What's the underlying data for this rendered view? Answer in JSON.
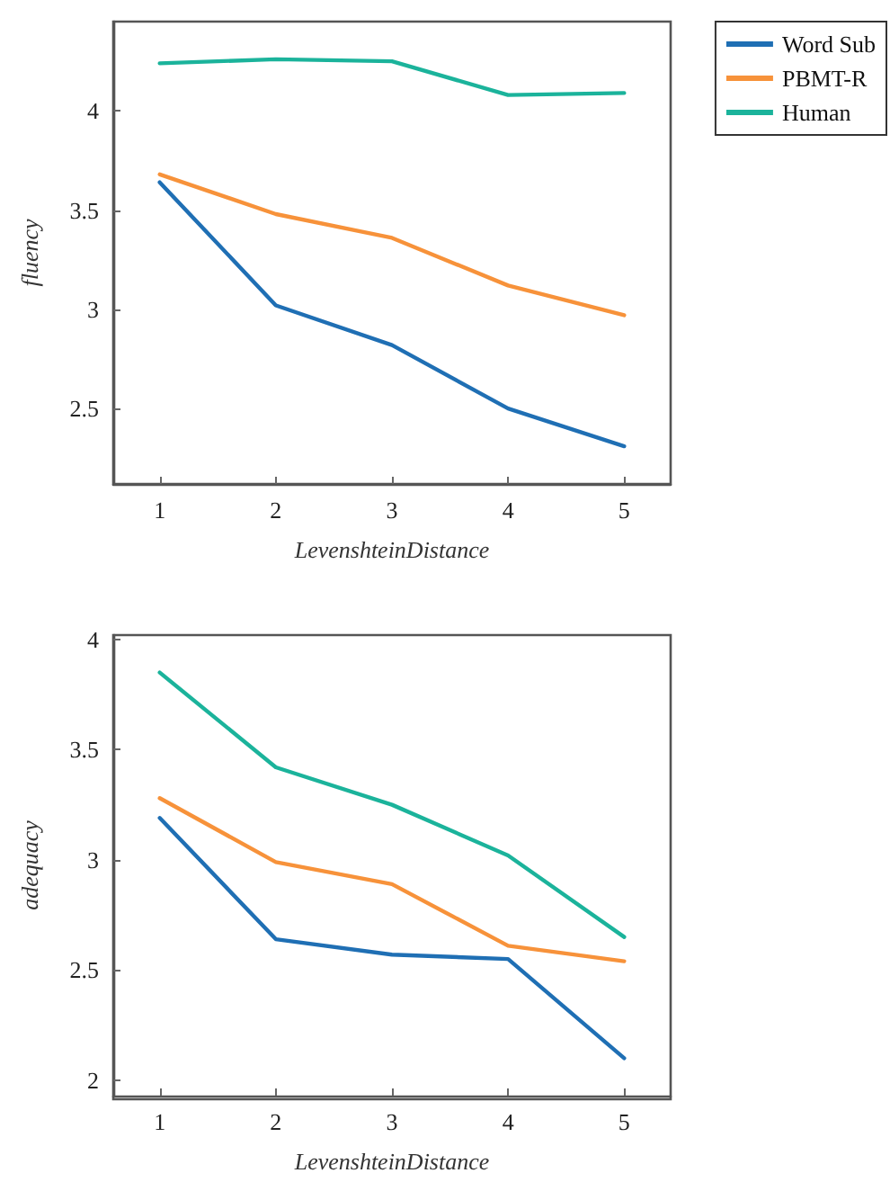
{
  "chart_data": [
    {
      "type": "line",
      "x": [
        1,
        2,
        3,
        4,
        5
      ],
      "xlabel": "LevenshteinDistance",
      "ylabel": "fluency",
      "xlim": [
        0.6,
        5.4
      ],
      "xticks": [
        1,
        2,
        3,
        4,
        5
      ],
      "ylim": [
        2.12,
        4.45
      ],
      "yticks": [
        2.5,
        3,
        3.5,
        4
      ],
      "legend": "top right",
      "grid": false,
      "marker": "none",
      "line_style": "solid",
      "series": [
        {
          "name": "Word Sub",
          "color": "#1f6fb4",
          "values": [
            3.64,
            3.02,
            2.82,
            2.5,
            2.31
          ]
        },
        {
          "name": "PBMT-R",
          "color": "#f7923a",
          "values": [
            3.68,
            3.48,
            3.36,
            3.12,
            2.97
          ]
        },
        {
          "name": "Human",
          "color": "#1bb39b",
          "values": [
            4.24,
            4.26,
            4.25,
            4.08,
            4.09
          ]
        }
      ]
    },
    {
      "type": "line",
      "x": [
        1,
        2,
        3,
        4,
        5
      ],
      "xlabel": "LevenshteinDistance",
      "ylabel": "adequacy",
      "xlim": [
        0.6,
        5.4
      ],
      "xticks": [
        1,
        2,
        3,
        4,
        5
      ],
      "ylim": [
        1.93,
        4.02
      ],
      "yticks": [
        2,
        2.5,
        3,
        3.5,
        4
      ],
      "legend": false,
      "grid": false,
      "marker": "none",
      "line_style": "solid",
      "series": [
        {
          "color": "#1f6fb4",
          "values": [
            3.19,
            2.64,
            2.57,
            2.55,
            2.1
          ]
        },
        {
          "color": "#f7923a",
          "values": [
            3.28,
            2.99,
            2.89,
            2.61,
            2.54
          ]
        },
        {
          "color": "#1bb39b",
          "values": [
            3.85,
            3.42,
            3.25,
            3.02,
            2.65
          ]
        }
      ]
    }
  ]
}
